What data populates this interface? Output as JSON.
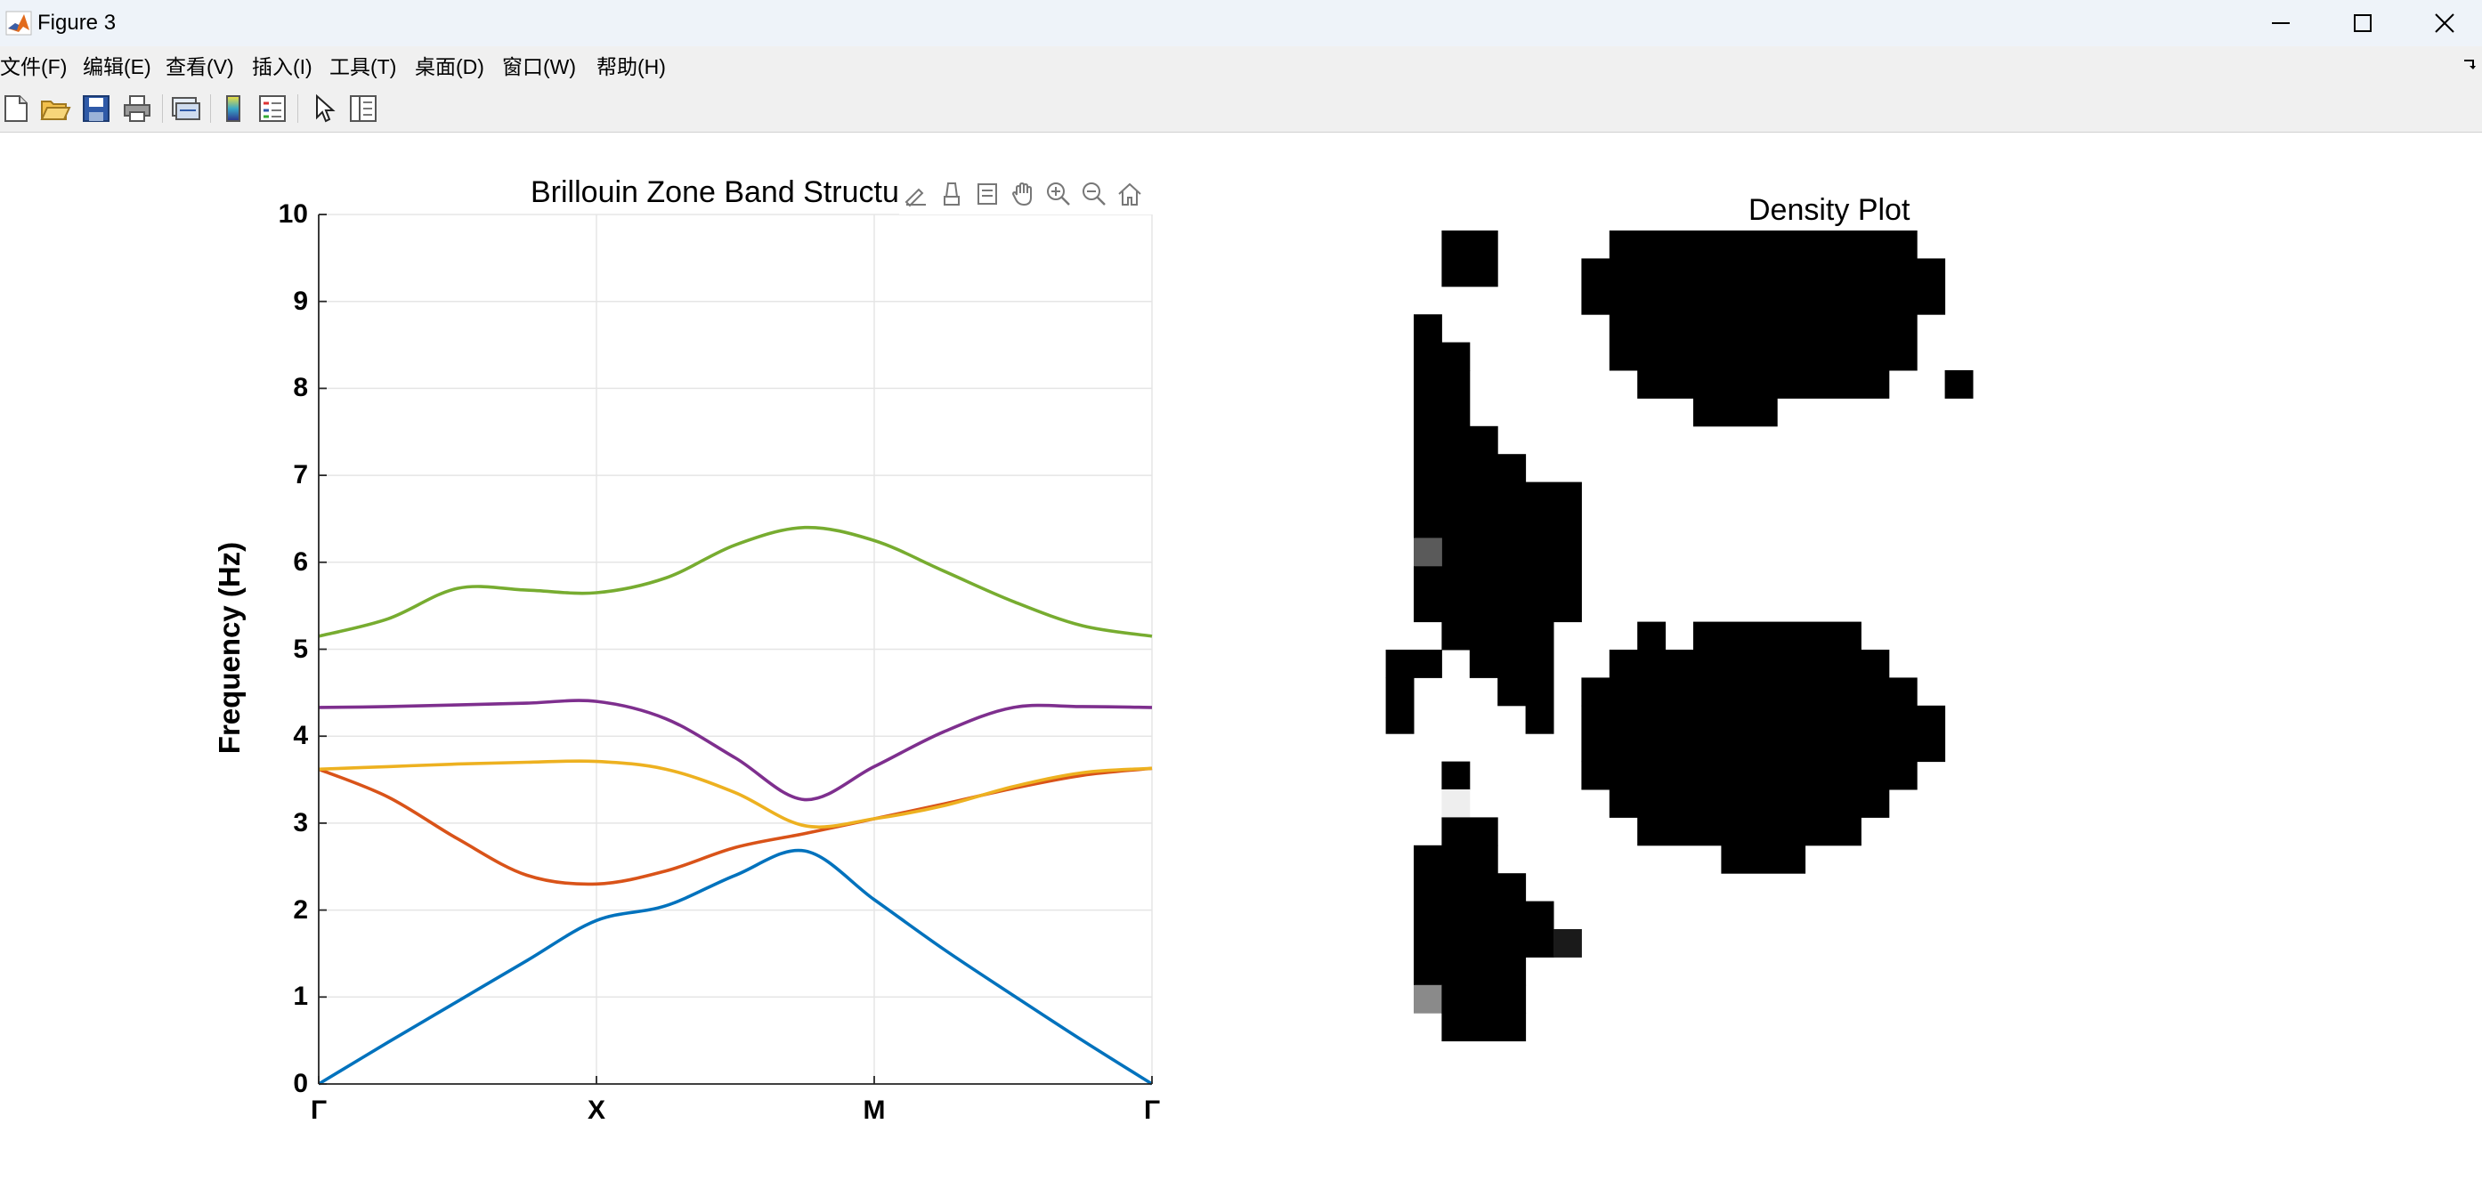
{
  "window": {
    "title": "Figure 3",
    "controls": [
      "minimize",
      "maximize",
      "close"
    ]
  },
  "menubar": {
    "items": [
      {
        "label": "文件(F)"
      },
      {
        "label": "编辑(E)"
      },
      {
        "label": "查看(V)"
      },
      {
        "label": "插入(I)"
      },
      {
        "label": "工具(T)"
      },
      {
        "label": "桌面(D)"
      },
      {
        "label": "窗口(W)"
      },
      {
        "label": "帮助(H)"
      }
    ]
  },
  "toolbar": {
    "icons": [
      "new-figure-icon",
      "open-file-icon",
      "save-icon",
      "print-icon",
      "link-icon",
      "colorbar-icon",
      "legend-icon",
      "pointer-icon",
      "property-inspector-icon"
    ]
  },
  "axes_toolbar": {
    "icons": [
      "brush-edit-icon",
      "data-tips-icon",
      "export-icon",
      "pan-hand-icon",
      "zoom-in-icon",
      "zoom-out-icon",
      "home-icon"
    ]
  },
  "colors": {
    "band1": "#0072BD",
    "band2": "#D95319",
    "band3": "#EDB120",
    "band4": "#7E2F8E",
    "band5": "#77AC30",
    "grid": "#e5e5e5",
    "axis": "#262626"
  },
  "chart_data": [
    {
      "type": "line",
      "title": "Brillouin Zone Band Structu",
      "xlabel": "",
      "ylabel": "Frequency (Hz)",
      "ylim": [
        0,
        10
      ],
      "yticks": [
        "0",
        "1",
        "2",
        "3",
        "4",
        "5",
        "6",
        "7",
        "8",
        "9",
        "10"
      ],
      "xticks": [
        "Γ",
        "X",
        "M",
        "Γ"
      ],
      "grid": true,
      "x": [
        0,
        0.25,
        0.5,
        0.75,
        1,
        1.25,
        1.5,
        1.75,
        2,
        2.25,
        2.5,
        2.75,
        3
      ],
      "series": [
        {
          "values": [
            0,
            0.48,
            0.95,
            1.42,
            1.88,
            2.05,
            2.4,
            2.68,
            2.12,
            1.55,
            1.02,
            0.5,
            0
          ]
        },
        {
          "values": [
            3.62,
            3.3,
            2.82,
            2.4,
            2.3,
            2.45,
            2.72,
            2.88,
            3.05,
            3.22,
            3.4,
            3.55,
            3.63
          ]
        },
        {
          "values": [
            3.62,
            3.65,
            3.68,
            3.7,
            3.71,
            3.62,
            3.35,
            2.97,
            3.05,
            3.2,
            3.42,
            3.58,
            3.63
          ]
        },
        {
          "values": [
            4.33,
            4.34,
            4.36,
            4.38,
            4.4,
            4.2,
            3.75,
            3.27,
            3.65,
            4.05,
            4.33,
            4.34,
            4.33
          ]
        },
        {
          "values": [
            5.15,
            5.35,
            5.7,
            5.68,
            5.65,
            5.82,
            6.2,
            6.4,
            6.25,
            5.9,
            5.55,
            5.27,
            5.15
          ]
        }
      ]
    },
    {
      "type": "heatmap",
      "title": "Density Plot",
      "grid": false
    }
  ]
}
